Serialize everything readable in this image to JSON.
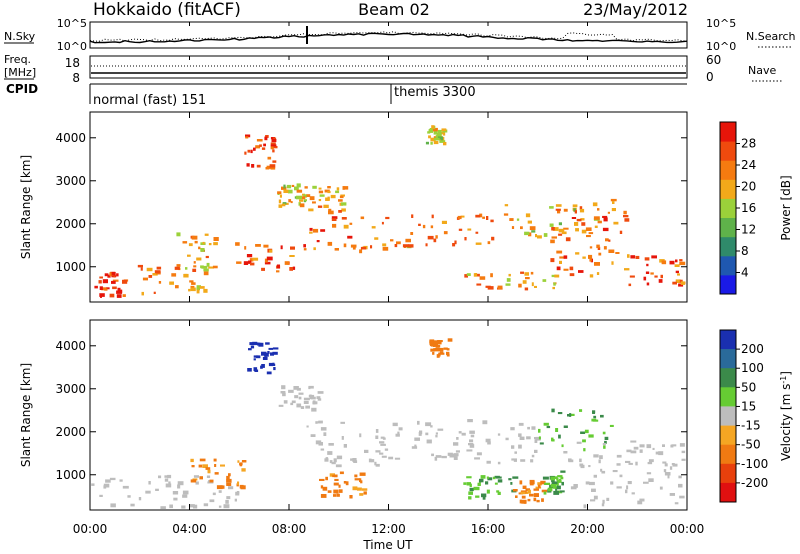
{
  "header": {
    "station": "Hokkaido (fitACF)",
    "beam": "Beam 02",
    "date": "23/May/2012"
  },
  "noise_panel": {
    "left_label": "N.Sky",
    "right_label": "N.Search",
    "left_ticks": [
      "10^5",
      "10^0"
    ],
    "right_ticks": [
      "10^5",
      "10^0"
    ]
  },
  "freq_panel": {
    "left_label_line1": "Freq.",
    "left_label_line2": "[MHz]",
    "right_label": "Nave",
    "left_ticks": [
      "18",
      "8"
    ],
    "right_ticks": [
      "60",
      "0"
    ]
  },
  "cpid_panel": {
    "label": "CPID",
    "modes": [
      {
        "name": "normal (fast) 151",
        "start_hour": 0
      },
      {
        "name": "themis 3300",
        "start_hour": 12.1
      }
    ]
  },
  "time_axis": {
    "label": "Time UT",
    "ticks": [
      "00:00",
      "04:00",
      "08:00",
      "12:00",
      "16:00",
      "20:00",
      "00:00"
    ],
    "range_hours": [
      0,
      24
    ]
  },
  "range_axis": {
    "label": "Slant Range [km]",
    "ticks": [
      "1000",
      "2000",
      "3000",
      "4000"
    ],
    "range_km": [
      180,
      4600
    ]
  },
  "power_colorbar": {
    "title": "Power [dB]",
    "ticks": [
      "4",
      "8",
      "12",
      "16",
      "20",
      "24",
      "28"
    ],
    "colors": [
      "#1a1ae6",
      "#1f58b0",
      "#2f8a6a",
      "#5fb24a",
      "#9bd13a",
      "#f2a91a",
      "#f57b10",
      "#ef4a0e",
      "#e6150a"
    ]
  },
  "velocity_colorbar": {
    "title": "Velocity [m s",
    "title_sup": "-1",
    "title_end": "]",
    "ticks": [
      "200",
      "100",
      "50",
      "15",
      "-15",
      "-50",
      "-100",
      "-200"
    ],
    "colors": [
      "#1a2fb0",
      "#2a6a9a",
      "#3b8a4a",
      "#66cc33",
      "#bdbdbd",
      "#f5a623",
      "#f07a12",
      "#e8400c",
      "#e01010"
    ]
  },
  "chart_data": {
    "type": "heatmap",
    "panels": [
      {
        "name": "power",
        "quantity": "Power",
        "unit": "dB",
        "x_range_hours": [
          0,
          24
        ],
        "y_range_km": [
          180,
          4600
        ],
        "features": [
          {
            "t0": 0.0,
            "t1": 1.6,
            "r0": 250,
            "r1": 900,
            "value": 27
          },
          {
            "t0": 1.8,
            "t1": 4.6,
            "r0": 320,
            "r1": 1050,
            "value": 22
          },
          {
            "t0": 3.4,
            "t1": 5.0,
            "r0": 900,
            "r1": 1900,
            "value": 20
          },
          {
            "t0": 5.8,
            "t1": 8.6,
            "r0": 900,
            "r1": 1600,
            "value": 26
          },
          {
            "t0": 6.2,
            "t1": 7.4,
            "r0": 3300,
            "r1": 4100,
            "value": 26
          },
          {
            "t0": 7.5,
            "t1": 8.7,
            "r0": 2400,
            "r1": 3000,
            "value": 18
          },
          {
            "t0": 8.6,
            "t1": 10.2,
            "r0": 2300,
            "r1": 2900,
            "value": 20
          },
          {
            "t0": 8.8,
            "t1": 12.0,
            "r0": 1400,
            "r1": 2200,
            "value": 23
          },
          {
            "t0": 12.0,
            "t1": 16.2,
            "r0": 1500,
            "r1": 2300,
            "value": 22
          },
          {
            "t0": 13.5,
            "t1": 14.2,
            "r0": 3900,
            "r1": 4300,
            "value": 16
          },
          {
            "t0": 15.0,
            "t1": 18.8,
            "r0": 500,
            "r1": 900,
            "value": 22
          },
          {
            "t0": 16.5,
            "t1": 20.5,
            "r0": 1700,
            "r1": 2500,
            "value": 18
          },
          {
            "t0": 18.5,
            "t1": 21.5,
            "r0": 800,
            "r1": 2600,
            "value": 24
          },
          {
            "t0": 21.5,
            "t1": 23.8,
            "r0": 600,
            "r1": 1300,
            "value": 25
          }
        ]
      },
      {
        "name": "velocity",
        "quantity": "Velocity",
        "unit": "m s-1",
        "x_range_hours": [
          0,
          24
        ],
        "y_range_km": [
          180,
          4600
        ],
        "features": [
          {
            "t0": 0.0,
            "t1": 6.0,
            "r0": 250,
            "r1": 1000,
            "value": 0
          },
          {
            "t0": 4.0,
            "t1": 6.2,
            "r0": 700,
            "r1": 1400,
            "value": -40
          },
          {
            "t0": 6.3,
            "t1": 7.4,
            "r0": 3400,
            "r1": 4100,
            "value": 180
          },
          {
            "t0": 7.5,
            "t1": 9.2,
            "r0": 2500,
            "r1": 3100,
            "value": 0
          },
          {
            "t0": 8.5,
            "t1": 12.0,
            "r0": 1200,
            "r1": 2300,
            "value": 0
          },
          {
            "t0": 9.2,
            "t1": 11.0,
            "r0": 500,
            "r1": 1100,
            "value": -40
          },
          {
            "t0": 12.0,
            "t1": 18.0,
            "r0": 1300,
            "r1": 2300,
            "value": 0
          },
          {
            "t0": 13.6,
            "t1": 14.4,
            "r0": 3800,
            "r1": 4200,
            "value": -45
          },
          {
            "t0": 15.0,
            "t1": 17.0,
            "r0": 500,
            "r1": 1000,
            "value": 30
          },
          {
            "t0": 17.0,
            "t1": 18.2,
            "r0": 400,
            "r1": 900,
            "value": -40
          },
          {
            "t0": 18.2,
            "t1": 19.0,
            "r0": 600,
            "r1": 1100,
            "value": 30
          },
          {
            "t0": 18.0,
            "t1": 21.0,
            "r0": 1600,
            "r1": 2600,
            "value": 30
          },
          {
            "t0": 19.0,
            "t1": 24.0,
            "r0": 300,
            "r1": 1800,
            "value": 0
          }
        ]
      }
    ],
    "noise": {
      "sky_median_log10": 1.5,
      "search_median_log10": 1.5
    },
    "frequency_mhz": 10.5
  }
}
